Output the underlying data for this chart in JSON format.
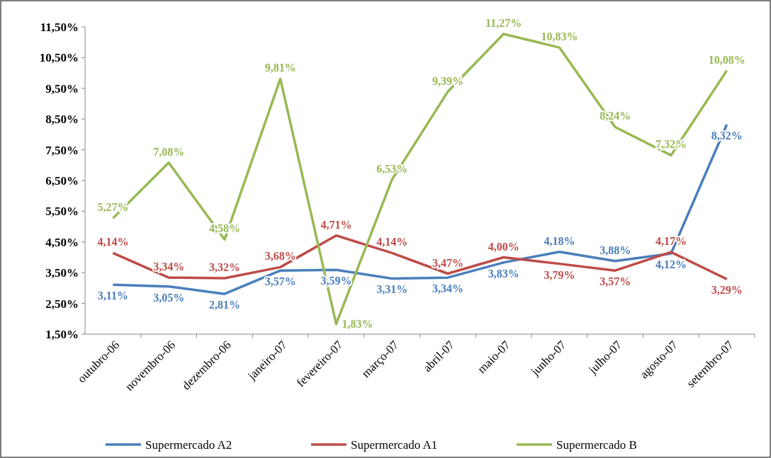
{
  "chart_data": {
    "type": "line",
    "categories": [
      "outubro-06",
      "novembro-06",
      "dezembro-06",
      "janeiro-07",
      "fevereiro-07",
      "março-07",
      "abril-07",
      "maio-07",
      "junho-07",
      "julho-07",
      "agosto-07",
      "setembro-07"
    ],
    "series": [
      {
        "name": "Supermercado A2",
        "color": "#4a7ebb",
        "values": [
          3.11,
          3.05,
          2.81,
          3.57,
          3.59,
          3.31,
          3.34,
          3.83,
          4.18,
          3.88,
          4.12,
          8.32
        ],
        "value_labels": [
          "3,11%",
          "3,05%",
          "2,81%",
          "3,57%",
          "3,59%",
          "3,31%",
          "3,34%",
          "3,83%",
          "4,18%",
          "3,88%",
          "4,12%",
          "8,32%"
        ]
      },
      {
        "name": "Supermercado A1",
        "color": "#be4b48",
        "values": [
          4.14,
          3.34,
          3.32,
          3.68,
          4.71,
          4.14,
          3.47,
          4.0,
          3.79,
          3.57,
          4.17,
          3.29
        ],
        "value_labels": [
          "4,14%",
          "3,34%",
          "3,32%",
          "3,68%",
          "4,71%",
          "4,14%",
          "3,47%",
          "4,00%",
          "3,79%",
          "3,57%",
          "4,17%",
          "3,29%"
        ]
      },
      {
        "name": "Supermercado B",
        "color": "#98b954",
        "values": [
          5.27,
          7.08,
          4.58,
          9.81,
          1.83,
          6.53,
          9.39,
          11.27,
          10.83,
          8.24,
          7.32,
          10.08
        ],
        "value_labels": [
          "5,27%",
          "7,08%",
          "4,58%",
          "9,81%",
          "1,83%",
          "6,53%",
          "9,39%",
          "11,27%",
          "10,83%",
          "8,24%",
          "7,32%",
          "10,08%"
        ]
      }
    ],
    "ylim": [
      1.5,
      11.5
    ],
    "yticks": [
      {
        "value": 1.5,
        "label": "1,50%"
      },
      {
        "value": 2.5,
        "label": "2,50%"
      },
      {
        "value": 3.5,
        "label": "3,50%"
      },
      {
        "value": 4.5,
        "label": "4,50%"
      },
      {
        "value": 5.5,
        "label": "5,50%"
      },
      {
        "value": 6.5,
        "label": "6,50%"
      },
      {
        "value": 7.5,
        "label": "7,50%"
      },
      {
        "value": 8.5,
        "label": "8,50%"
      },
      {
        "value": 9.5,
        "label": "9,50%"
      },
      {
        "value": 10.5,
        "label": "10,50%"
      },
      {
        "value": 11.5,
        "label": "11,50%"
      }
    ],
    "grid": false,
    "legend": "bottom",
    "marker": "none",
    "line_style": "solid"
  }
}
